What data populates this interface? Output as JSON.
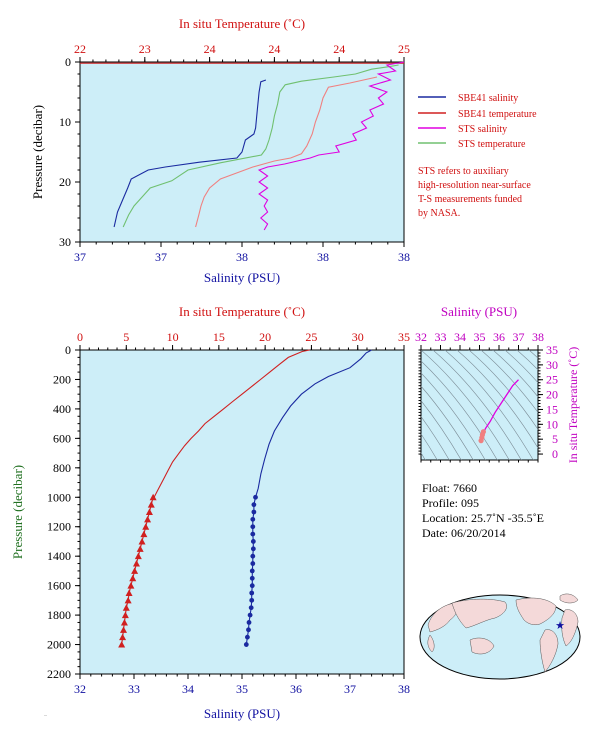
{
  "colors": {
    "sbe_salinity": "#1a2aa0",
    "sbe_temperature": "#d02020",
    "sts_salinity": "#e000e0",
    "sts_temperature": "#70c070",
    "sts_temperature_lower": "#f08080",
    "plot_background": "#cdeef8",
    "text_red": "#d01010",
    "text_blue": "#1010a0",
    "text_green": "#207020",
    "text_magenta": "#c000c0"
  },
  "chart_data": [
    {
      "type": "line",
      "title": "",
      "top_axis": {
        "label": "In situ Temperature (˚C)",
        "ticks": [
          "22",
          "23",
          "24",
          "24",
          "24",
          "25"
        ],
        "range": [
          22,
          25
        ]
      },
      "bottom_axis": {
        "label": "Salinity (PSU)",
        "ticks": [
          "37",
          "37",
          "38",
          "38",
          "38"
        ],
        "range": [
          36.9,
          38.8
        ]
      },
      "left_axis": {
        "label": "Pressure (decibar)",
        "ticks": [
          "0",
          "10",
          "20",
          "30"
        ],
        "range": [
          0,
          30
        ],
        "inverted": true
      },
      "legend": {
        "position": "right",
        "entries": [
          {
            "label": "SBE41 salinity",
            "color_key": "sbe_salinity"
          },
          {
            "label": "SBE41 temperature",
            "color_key": "sbe_temperature"
          },
          {
            "label": "STS salinity",
            "color_key": "sts_salinity"
          },
          {
            "label": "STS temperature",
            "color_key": "sts_temperature"
          }
        ]
      },
      "note": [
        "STS refers to auxiliary",
        "high-resolution near-surface",
        "T-S measurements funded",
        "by NASA."
      ],
      "series": [
        {
          "name": "SBE41 salinity",
          "axis": "bottom",
          "points": [
            [
              37.99,
              3
            ],
            [
              37.96,
              3.3
            ],
            [
              37.95,
              5
            ],
            [
              37.94,
              8
            ],
            [
              37.93,
              11
            ],
            [
              37.92,
              12
            ],
            [
              37.87,
              13
            ],
            [
              37.85,
              15
            ],
            [
              37.82,
              16
            ],
            [
              37.6,
              16.7
            ],
            [
              37.4,
              17.5
            ],
            [
              37.3,
              18
            ],
            [
              37.2,
              19.5
            ],
            [
              37.18,
              21
            ],
            [
              37.15,
              23
            ],
            [
              37.12,
              25
            ],
            [
              37.1,
              27.5
            ]
          ]
        },
        {
          "name": "STS temperature",
          "axis": "top",
          "points": [
            [
              24.95,
              0.5
            ],
            [
              24.85,
              0.8
            ],
            [
              24.7,
              1.2
            ],
            [
              24.55,
              2
            ],
            [
              24.35,
              2.5
            ],
            [
              24.05,
              3.2
            ],
            [
              23.9,
              3.8
            ],
            [
              23.85,
              5
            ],
            [
              23.83,
              7
            ],
            [
              23.8,
              9
            ],
            [
              23.78,
              11
            ],
            [
              23.75,
              13
            ],
            [
              23.72,
              14.5
            ],
            [
              23.68,
              15.5
            ],
            [
              23.3,
              16.8
            ],
            [
              23.0,
              18
            ],
            [
              22.85,
              19.8
            ],
            [
              22.65,
              21
            ],
            [
              22.6,
              22
            ],
            [
              22.55,
              23
            ],
            [
              22.5,
              24
            ],
            [
              22.45,
              25.5
            ],
            [
              22.4,
              27.5
            ]
          ]
        },
        {
          "name": "SBE41 temperature",
          "axis": "top",
          "points": [
            [
              22.0,
              0.2
            ],
            [
              25.0,
              0.2
            ]
          ]
        },
        {
          "name": "STS temperature (lower)",
          "axis": "top",
          "points": [
            [
              24.75,
              2.5
            ],
            [
              24.5,
              3.5
            ],
            [
              24.3,
              4.2
            ],
            [
              24.25,
              6
            ],
            [
              24.22,
              8
            ],
            [
              24.18,
              10
            ],
            [
              24.15,
              12
            ],
            [
              24.1,
              14
            ],
            [
              24.05,
              15.3
            ],
            [
              23.95,
              16
            ],
            [
              23.8,
              16.5
            ],
            [
              23.6,
              17.5
            ],
            [
              23.45,
              18.5
            ],
            [
              23.3,
              19.5
            ],
            [
              23.2,
              21
            ],
            [
              23.15,
              22.5
            ],
            [
              23.12,
              24
            ],
            [
              23.1,
              25.5
            ],
            [
              23.07,
              27.5
            ]
          ]
        },
        {
          "name": "STS salinity",
          "axis": "bottom",
          "points": [
            [
              38.8,
              0
            ],
            [
              38.7,
              0.5
            ],
            [
              38.75,
              1.5
            ],
            [
              38.65,
              2
            ],
            [
              38.72,
              3
            ],
            [
              38.6,
              4
            ],
            [
              38.7,
              5
            ],
            [
              38.65,
              6
            ],
            [
              38.68,
              7
            ],
            [
              38.6,
              8
            ],
            [
              38.62,
              9
            ],
            [
              38.55,
              10
            ],
            [
              38.58,
              11
            ],
            [
              38.5,
              12
            ],
            [
              38.52,
              13
            ],
            [
              38.4,
              14
            ],
            [
              38.42,
              15
            ],
            [
              38.3,
              15.5
            ],
            [
              38.25,
              16
            ],
            [
              38.1,
              17
            ],
            [
              38.0,
              17.5
            ],
            [
              37.95,
              18
            ],
            [
              38.0,
              19
            ],
            [
              37.95,
              20
            ],
            [
              38.0,
              21
            ],
            [
              37.95,
              22
            ],
            [
              38.0,
              23
            ],
            [
              37.98,
              24
            ],
            [
              38.0,
              25
            ],
            [
              37.96,
              26
            ],
            [
              38.0,
              27
            ],
            [
              37.98,
              28
            ]
          ]
        }
      ]
    },
    {
      "type": "line",
      "title": "",
      "top_axis": {
        "label": "In situ Temperature (˚C)",
        "ticks": [
          "0",
          "5",
          "10",
          "15",
          "20",
          "25",
          "30",
          "35"
        ],
        "range": [
          0,
          35
        ]
      },
      "bottom_axis": {
        "label": "Salinity (PSU)",
        "ticks": [
          "32",
          "33",
          "34",
          "35",
          "36",
          "37",
          "38"
        ],
        "range": [
          32,
          38
        ]
      },
      "left_axis": {
        "label": "Pressure (decibar)",
        "ticks": [
          "0",
          "200",
          "400",
          "600",
          "800",
          "1000",
          "1200",
          "1400",
          "1600",
          "1800",
          "2000",
          "2200"
        ],
        "range": [
          0,
          2200
        ],
        "inverted": true
      },
      "series": [
        {
          "name": "SBE41 temperature",
          "axis": "top",
          "points": [
            [
              24.8,
              0
            ],
            [
              24.0,
              10
            ],
            [
              22.5,
              50
            ],
            [
              21.5,
              100
            ],
            [
              20.5,
              150
            ],
            [
              19.5,
              200
            ],
            [
              18.5,
              250
            ],
            [
              17.5,
              300
            ],
            [
              16.5,
              350
            ],
            [
              15.5,
              400
            ],
            [
              14.5,
              450
            ],
            [
              13.5,
              500
            ],
            [
              12.8,
              550
            ],
            [
              12.0,
              600
            ],
            [
              11.3,
              650
            ],
            [
              10.7,
              700
            ],
            [
              10.0,
              760
            ],
            [
              9.5,
              820
            ],
            [
              9.0,
              880
            ],
            [
              8.5,
              940
            ],
            [
              8.0,
              1000
            ]
          ],
          "markers": [
            [
              7.9,
              1000
            ],
            [
              7.7,
              1050
            ],
            [
              7.5,
              1100
            ],
            [
              7.3,
              1150
            ],
            [
              7.1,
              1200
            ],
            [
              6.9,
              1250
            ],
            [
              6.7,
              1300
            ],
            [
              6.5,
              1350
            ],
            [
              6.3,
              1400
            ],
            [
              6.1,
              1450
            ],
            [
              5.9,
              1500
            ],
            [
              5.7,
              1550
            ],
            [
              5.5,
              1600
            ],
            [
              5.3,
              1650
            ],
            [
              5.2,
              1700
            ],
            [
              5.0,
              1750
            ],
            [
              4.9,
              1800
            ],
            [
              4.8,
              1850
            ],
            [
              4.7,
              1900
            ],
            [
              4.6,
              1950
            ],
            [
              4.5,
              2000
            ]
          ]
        },
        {
          "name": "SBE41 salinity",
          "axis": "bottom",
          "points": [
            [
              37.4,
              0
            ],
            [
              37.3,
              20
            ],
            [
              37.2,
              60
            ],
            [
              37.0,
              120
            ],
            [
              36.6,
              180
            ],
            [
              36.35,
              230
            ],
            [
              36.1,
              300
            ],
            [
              35.9,
              380
            ],
            [
              35.75,
              460
            ],
            [
              35.6,
              550
            ],
            [
              35.5,
              640
            ],
            [
              35.42,
              740
            ],
            [
              35.35,
              840
            ],
            [
              35.3,
              940
            ],
            [
              35.25,
              1000
            ]
          ],
          "markers": [
            [
              35.25,
              1000
            ],
            [
              35.22,
              1050
            ],
            [
              35.22,
              1100
            ],
            [
              35.2,
              1150
            ],
            [
              35.2,
              1200
            ],
            [
              35.2,
              1250
            ],
            [
              35.21,
              1300
            ],
            [
              35.21,
              1350
            ],
            [
              35.2,
              1400
            ],
            [
              35.2,
              1450
            ],
            [
              35.19,
              1500
            ],
            [
              35.19,
              1550
            ],
            [
              35.19,
              1600
            ],
            [
              35.18,
              1650
            ],
            [
              35.18,
              1700
            ],
            [
              35.17,
              1750
            ],
            [
              35.15,
              1800
            ],
            [
              35.13,
              1850
            ],
            [
              35.12,
              1900
            ],
            [
              35.1,
              1950
            ],
            [
              35.08,
              2000
            ]
          ]
        }
      ]
    },
    {
      "type": "line",
      "title": "",
      "top_axis": {
        "label": "Salinity (PSU)",
        "ticks": [
          "32",
          "33",
          "34",
          "35",
          "36",
          "37",
          "38"
        ],
        "range": [
          32,
          38
        ]
      },
      "right_axis": {
        "label": "In situ Temperature (˚C)",
        "ticks": [
          "0",
          "5",
          "10",
          "15",
          "20",
          "25",
          "30",
          "35"
        ],
        "range": [
          -2,
          35
        ]
      },
      "series": [
        {
          "name": "T-S",
          "points": [
            [
              35.1,
              4.5
            ],
            [
              35.2,
              6.5
            ],
            [
              35.3,
              8.5
            ],
            [
              35.55,
              11
            ],
            [
              35.8,
              14
            ],
            [
              36.1,
              17
            ],
            [
              36.4,
              20
            ],
            [
              36.7,
              23
            ],
            [
              37.0,
              25
            ]
          ]
        }
      ]
    }
  ],
  "float_info": {
    "float": "Float:  7660",
    "profile": "Profile:  095",
    "location": "Location:  25.7˚N  -35.5˚E",
    "date": "Date:  06/20/2014"
  },
  "footer_text": "..."
}
